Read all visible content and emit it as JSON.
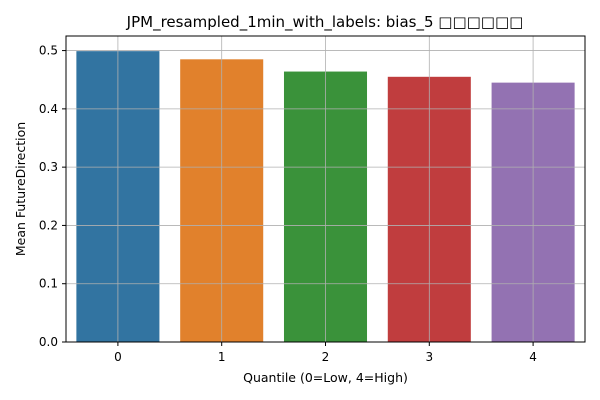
{
  "chart_data": {
    "type": "bar",
    "title": "JPM_resampled_1min_with_labels: bias_5 □□□□□□",
    "xlabel": "Quantile (0=Low, 4=High)",
    "ylabel": "Mean FutureDirection",
    "categories": [
      "0",
      "1",
      "2",
      "3",
      "4"
    ],
    "values": [
      0.499,
      0.485,
      0.464,
      0.455,
      0.445
    ],
    "ylim": [
      0,
      0.525
    ],
    "yticks": [
      0.0,
      0.1,
      0.2,
      0.3,
      0.4,
      0.5
    ],
    "ytick_labels": [
      "0.0",
      "0.1",
      "0.2",
      "0.3",
      "0.4",
      "0.5"
    ],
    "colors": [
      "#3274a1",
      "#e1812c",
      "#3a923a",
      "#c03d3e",
      "#9372b2"
    ],
    "grid": true,
    "legend": "none"
  }
}
